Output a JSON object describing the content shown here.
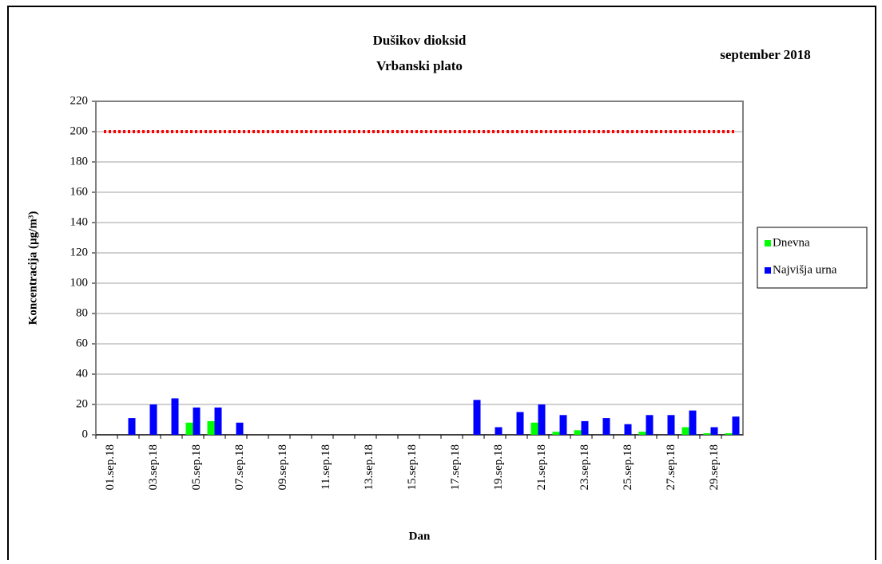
{
  "chart_data": {
    "type": "bar",
    "title": "Dušikov dioksid",
    "subtitle": "Vrbanski plato",
    "period": "september 2018",
    "y_label": "Koncentracija  (µg/m³)",
    "x_label": "Dan",
    "categories": [
      "01.sep.18",
      null,
      "03.sep.18",
      null,
      "05.sep.18",
      null,
      "07.sep.18",
      null,
      "09.sep.18",
      null,
      "11.sep.18",
      null,
      "13.sep.18",
      null,
      "15.sep.18",
      null,
      "17.sep.18",
      null,
      "19.sep.18",
      null,
      "21.sep.18",
      null,
      "23.sep.18",
      null,
      "25.sep.18",
      null,
      "27.sep.18",
      null,
      "29.sep.18",
      null
    ],
    "series": [
      {
        "name": "Dnevna",
        "color": "#00ff00",
        "values": [
          null,
          null,
          null,
          null,
          8,
          9,
          null,
          null,
          null,
          null,
          null,
          null,
          null,
          null,
          null,
          null,
          null,
          null,
          null,
          null,
          8,
          2,
          3,
          null,
          null,
          2,
          null,
          5,
          1,
          1
        ]
      },
      {
        "name": "Najvišja urna",
        "color": "#0000ff",
        "values": [
          null,
          11,
          20,
          24,
          18,
          18,
          8,
          null,
          null,
          null,
          null,
          null,
          null,
          null,
          null,
          null,
          null,
          23,
          5,
          15,
          20,
          13,
          9,
          11,
          7,
          13,
          13,
          16,
          5,
          12
        ]
      }
    ],
    "reference_line": {
      "value": 200,
      "color": "#ff0000"
    },
    "ylim": [
      0,
      220
    ],
    "yticks": [
      0,
      20,
      40,
      60,
      80,
      100,
      120,
      140,
      160,
      180,
      200,
      220
    ],
    "grid": true,
    "legend": "right"
  }
}
